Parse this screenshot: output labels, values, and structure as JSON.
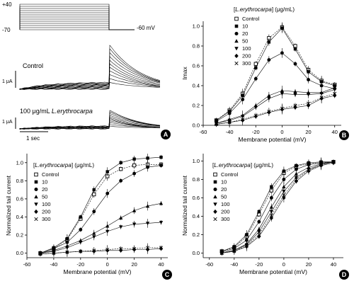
{
  "figure": {
    "panel_labels": [
      "A",
      "B",
      "C",
      "D"
    ]
  },
  "panel_a": {
    "protocol_labels": [
      "+40",
      "-70",
      "-60 mV"
    ],
    "control_label": "Control",
    "drug_label_prefix": "100 μg/mL ",
    "drug_label_species": "L.erythrocarpa",
    "scale_current_1": "1 μA",
    "scale_current_2": "1 μA",
    "scale_time": "1 sec"
  },
  "chart_data": [
    {
      "panel": "B",
      "type": "line",
      "xlabel": "Membrane potential (mV)",
      "ylabel": "Imax",
      "legend_title": "[L.erythrocarpa] (μg/mL)",
      "legend": [
        "Control",
        "10",
        "20",
        "50",
        "100",
        "200",
        "300"
      ],
      "xlim": [
        -60,
        45
      ],
      "ylim": [
        0,
        1.05
      ],
      "xticks": [
        "-60",
        "-40",
        "-20",
        "0",
        "20",
        "40"
      ],
      "yticks": [
        "0.0",
        "0.2",
        "0.4",
        "0.6",
        "0.8",
        "1.0"
      ],
      "x": [
        -50,
        -40,
        -30,
        -20,
        -10,
        0,
        10,
        20,
        30,
        40
      ],
      "series": [
        {
          "name": "Control",
          "marker": "square-open",
          "values": [
            0.05,
            0.15,
            0.32,
            0.62,
            0.88,
            0.99,
            0.8,
            0.56,
            0.45,
            0.41
          ]
        },
        {
          "name": "10",
          "marker": "square",
          "values": [
            0.05,
            0.14,
            0.3,
            0.58,
            0.84,
            0.98,
            0.77,
            0.54,
            0.44,
            0.4
          ]
        },
        {
          "name": "20",
          "marker": "circle",
          "values": [
            0.04,
            0.12,
            0.26,
            0.47,
            0.66,
            0.73,
            0.62,
            0.46,
            0.4,
            0.37
          ]
        },
        {
          "name": "50",
          "marker": "triangle-up",
          "values": [
            0.02,
            0.06,
            0.1,
            0.2,
            0.3,
            0.35,
            0.34,
            0.33,
            0.33,
            0.38
          ]
        },
        {
          "name": "100",
          "marker": "triangle-down",
          "values": [
            0.02,
            0.05,
            0.09,
            0.18,
            0.27,
            0.32,
            0.31,
            0.31,
            0.32,
            0.36
          ]
        },
        {
          "name": "200",
          "marker": "diamond",
          "values": [
            0.01,
            0.03,
            0.05,
            0.09,
            0.13,
            0.16,
            0.18,
            0.2,
            0.27,
            0.3
          ]
        },
        {
          "name": "300",
          "marker": "x",
          "values": [
            0.01,
            0.03,
            0.06,
            0.1,
            0.14,
            0.17,
            0.2,
            0.22,
            0.28,
            0.32
          ]
        }
      ]
    },
    {
      "panel": "C",
      "type": "line",
      "xlabel": "Membrane potential (mV)",
      "ylabel": "Normalized tail current",
      "legend_title": "[L.erythrocarpa] (μg/mL)",
      "legend": [
        "Control",
        "10",
        "20",
        "50",
        "100",
        "200",
        "300"
      ],
      "xlim": [
        -60,
        45
      ],
      "ylim": [
        -0.05,
        1.1
      ],
      "xticks": [
        "-60",
        "-40",
        "-20",
        "0",
        "20",
        "40"
      ],
      "yticks": [
        "0.0",
        "0.2",
        "0.4",
        "0.6",
        "0.8",
        "1.0"
      ],
      "x": [
        -50,
        -40,
        -30,
        -20,
        -10,
        0,
        10,
        20,
        30,
        40
      ],
      "series": [
        {
          "name": "Control",
          "marker": "square-open",
          "values": [
            0.0,
            0.05,
            0.15,
            0.38,
            0.65,
            0.85,
            0.93,
            0.97,
            0.98,
            0.98
          ]
        },
        {
          "name": "10",
          "marker": "square",
          "values": [
            0.0,
            0.06,
            0.16,
            0.4,
            0.7,
            0.9,
            1.0,
            1.04,
            1.05,
            1.06
          ]
        },
        {
          "name": "20",
          "marker": "circle",
          "values": [
            0.0,
            0.05,
            0.12,
            0.26,
            0.46,
            0.66,
            0.8,
            0.88,
            0.95,
            0.97
          ]
        },
        {
          "name": "50",
          "marker": "triangle-up",
          "values": [
            0.0,
            0.03,
            0.08,
            0.14,
            0.22,
            0.3,
            0.39,
            0.47,
            0.52,
            0.55
          ]
        },
        {
          "name": "100",
          "marker": "triangle-down",
          "values": [
            0.0,
            0.02,
            0.06,
            0.12,
            0.18,
            0.24,
            0.29,
            0.32,
            0.33,
            0.34
          ]
        },
        {
          "name": "200",
          "marker": "diamond",
          "values": [
            -0.01,
            0.0,
            0.01,
            0.02,
            0.02,
            0.03,
            0.03,
            0.04,
            0.04,
            0.05
          ]
        },
        {
          "name": "300",
          "marker": "x",
          "values": [
            -0.01,
            0.0,
            0.01,
            0.02,
            0.03,
            0.04,
            0.05,
            0.05,
            0.06,
            0.06
          ]
        }
      ]
    },
    {
      "panel": "D",
      "type": "line",
      "xlabel": "Membrane potential (mV)",
      "ylabel": "Normalized tail current",
      "legend_title": "[L.erythrocarpa] (μg/mL)",
      "legend": [
        "Control",
        "10",
        "20",
        "50",
        "100",
        "200",
        "300"
      ],
      "xlim": [
        -65,
        48
      ],
      "ylim": [
        -0.05,
        1.08
      ],
      "xticks": [
        "-60",
        "-40",
        "-20",
        "0",
        "20",
        "40"
      ],
      "yticks": [
        "0.0",
        "0.2",
        "0.4",
        "0.6",
        "0.8",
        "1.0"
      ],
      "x": [
        -50,
        -40,
        -30,
        -20,
        -10,
        0,
        10,
        20,
        30,
        40
      ],
      "series": [
        {
          "name": "Control",
          "marker": "square-open",
          "values": [
            0.02,
            0.06,
            0.18,
            0.42,
            0.68,
            0.87,
            0.94,
            0.97,
            0.98,
            0.99
          ]
        },
        {
          "name": "10",
          "marker": "square",
          "values": [
            0.02,
            0.07,
            0.2,
            0.45,
            0.72,
            0.89,
            0.95,
            0.98,
            0.99,
            0.99
          ]
        },
        {
          "name": "20",
          "marker": "circle",
          "values": [
            0.01,
            0.05,
            0.14,
            0.34,
            0.6,
            0.8,
            0.91,
            0.96,
            0.98,
            0.99
          ]
        },
        {
          "name": "50",
          "marker": "triangle-up",
          "values": [
            0.0,
            0.03,
            0.1,
            0.26,
            0.5,
            0.72,
            0.86,
            0.93,
            0.97,
            0.99
          ]
        },
        {
          "name": "100",
          "marker": "triangle-down",
          "values": [
            0.0,
            0.03,
            0.09,
            0.23,
            0.45,
            0.67,
            0.82,
            0.91,
            0.96,
            0.99
          ]
        },
        {
          "name": "200",
          "marker": "diamond",
          "values": [
            0.0,
            0.02,
            0.07,
            0.18,
            0.38,
            0.6,
            0.78,
            0.89,
            0.95,
            0.98
          ]
        },
        {
          "name": "300",
          "marker": "x",
          "values": [
            0.0,
            0.02,
            0.08,
            0.2,
            0.41,
            0.63,
            0.8,
            0.9,
            0.96,
            0.99
          ]
        }
      ]
    }
  ]
}
